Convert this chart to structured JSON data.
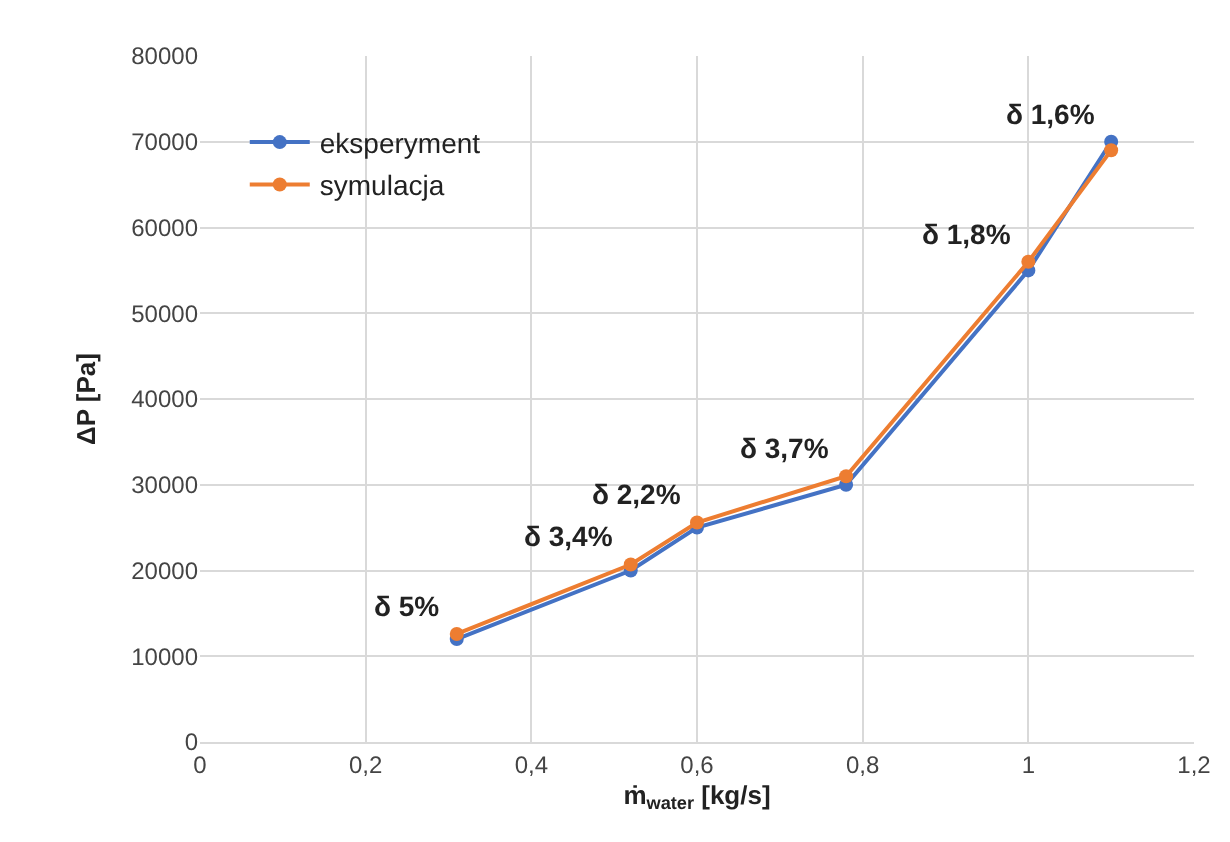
{
  "chart_data": {
    "type": "line",
    "xlabel": "ṁ$_{water}$ [kg/s]",
    "ylabel": "ΔP [Pa]",
    "x": [
      0.31,
      0.52,
      0.6,
      0.78,
      1.0,
      1.1
    ],
    "series": [
      {
        "name": "eksperyment",
        "color": "#4472c4",
        "values": [
          12000,
          20000,
          25000,
          30000,
          55000,
          70000
        ]
      },
      {
        "name": "symulacja",
        "color": "#ed7d31",
        "values": [
          12600,
          20700,
          25600,
          31000,
          56000,
          69000
        ]
      }
    ],
    "xlim": [
      0,
      1.2
    ],
    "xticks": [
      0,
      {
        "value": 0.2,
        "label": "0,2"
      },
      {
        "value": 0.4,
        "label": "0,4"
      },
      {
        "value": 0.6,
        "label": "0,6"
      },
      {
        "value": 0.8,
        "label": "0,8"
      },
      1,
      {
        "value": 1.2,
        "label": "1,2"
      }
    ],
    "ylim": [
      0,
      80000
    ],
    "yticks": [
      0,
      10000,
      20000,
      30000,
      40000,
      50000,
      60000,
      70000,
      80000
    ],
    "annotations": [
      {
        "text": "δ 5%",
        "x": 0.31,
        "y": 12600
      },
      {
        "text": "δ 3,4%",
        "x": 0.52,
        "y": 20700
      },
      {
        "text": "δ 2,2%",
        "x": 0.6,
        "y": 25600
      },
      {
        "text": "δ 3,7%",
        "x": 0.78,
        "y": 31000
      },
      {
        "text": "δ 1,8%",
        "x": 1.0,
        "y": 56000
      },
      {
        "text": "δ 1,6%",
        "x": 1.1,
        "y": 70000
      }
    ],
    "grid": true,
    "legend": "top left",
    "marker": "circle",
    "line_style": "solid"
  }
}
